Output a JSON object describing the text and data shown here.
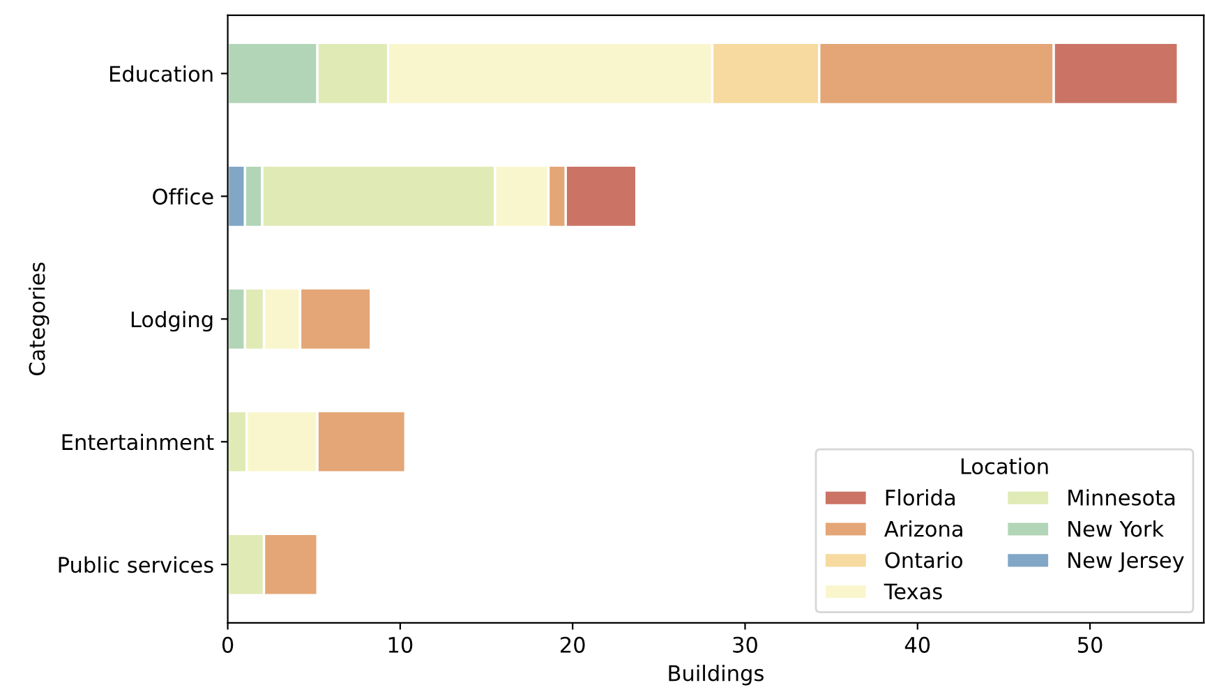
{
  "chart_data": {
    "type": "bar",
    "orientation": "horizontal",
    "stacked": true,
    "categories": [
      "Education",
      "Office",
      "Lodging",
      "Entertainment",
      "Public services"
    ],
    "xlabel": "Buildings",
    "ylabel": "Categories",
    "legend_title": "Location",
    "legend": "bottom right",
    "xlim": [
      0,
      56.6
    ],
    "xticks": [
      0,
      10,
      20,
      30,
      40,
      50
    ],
    "grid": false,
    "series": [
      {
        "name": "New Jersey",
        "color": "#81a6c6",
        "values": [
          null,
          1.0,
          null,
          null,
          null
        ]
      },
      {
        "name": "New York",
        "color": "#b3d5b7",
        "values": [
          5.2,
          1.0,
          1.0,
          null,
          null
        ]
      },
      {
        "name": "Minnesota",
        "color": "#e0eab5",
        "values": [
          4.1,
          13.5,
          1.1,
          1.1,
          2.1
        ]
      },
      {
        "name": "Texas",
        "color": "#f9f6cd",
        "values": [
          18.8,
          3.1,
          2.1,
          4.1,
          null
        ]
      },
      {
        "name": "Ontario",
        "color": "#f6da9f",
        "values": [
          6.2,
          null,
          null,
          null,
          null
        ]
      },
      {
        "name": "Arizona",
        "color": "#e4a676",
        "values": [
          13.6,
          1.0,
          4.1,
          5.1,
          3.1
        ]
      },
      {
        "name": "Florida",
        "color": "#cb7466",
        "values": [
          7.2,
          4.1,
          null,
          null,
          null
        ]
      }
    ]
  }
}
